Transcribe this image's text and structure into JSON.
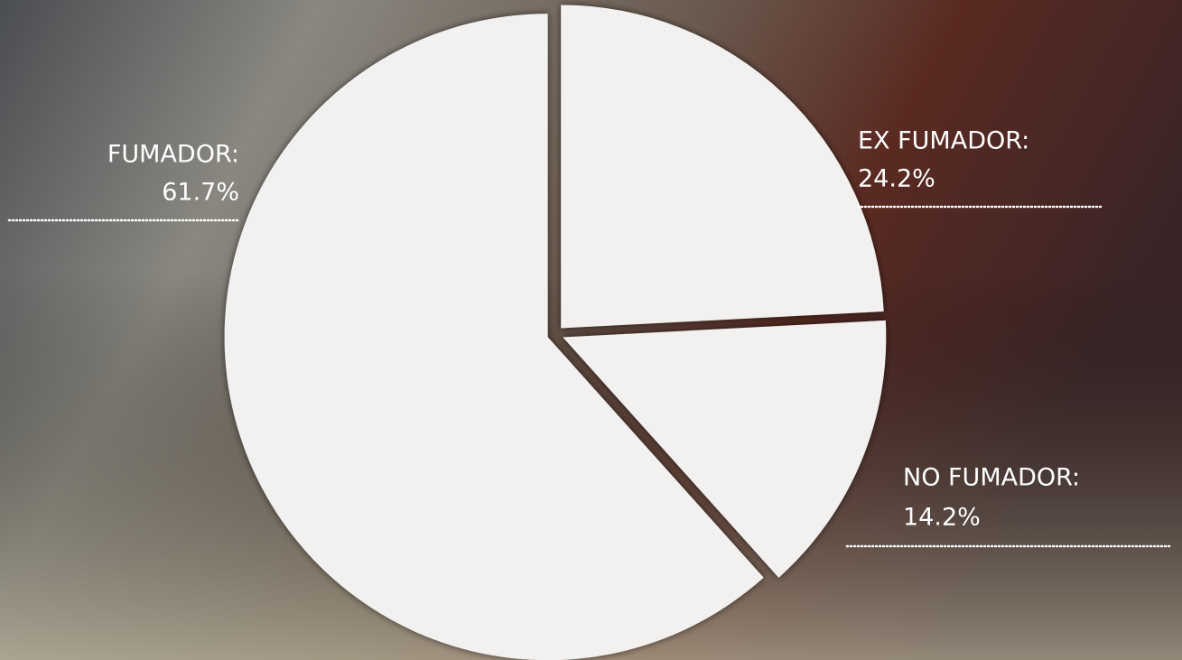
{
  "chart_data": {
    "type": "pie",
    "categories": [
      "EX FUMADOR:",
      "NO FUMADOR:",
      "FUMADOR:"
    ],
    "values": [
      24.2,
      14.2,
      61.7
    ],
    "value_labels": [
      "24.2%",
      "14.2%",
      "61.7%"
    ],
    "color": "#f2f1ef"
  }
}
